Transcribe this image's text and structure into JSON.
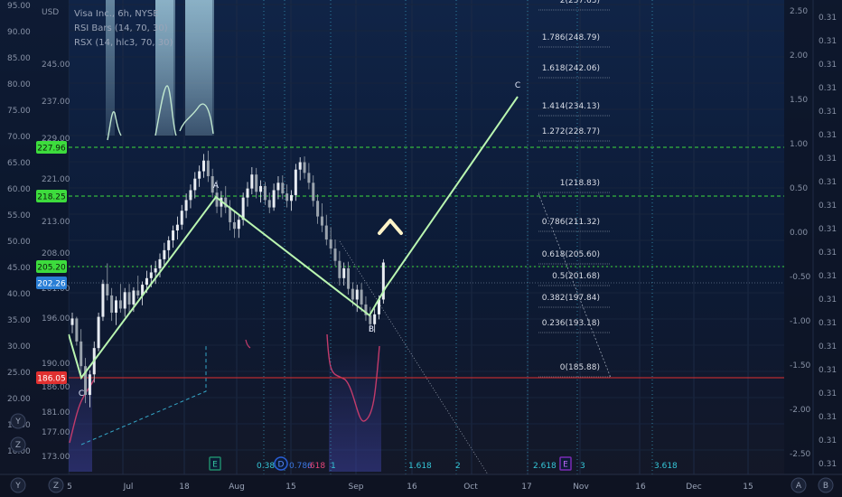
{
  "legend": {
    "symbol_line": "Visa Inc., 6h, NYSE",
    "indicator_1": "RSI Bars (14, 70, 30)",
    "indicator_2": "RSX (14, hlc3, 70, 30)"
  },
  "axis_badges": {
    "currency": "USD",
    "left_buttons": [
      "Y",
      "Z"
    ],
    "right_buttons": [
      "A",
      "B"
    ]
  },
  "colors": {
    "background_top": "#0e1a33",
    "background_bottom": "#121a2a",
    "wave": "#b9f5b0",
    "level_green": "#3ddc3d",
    "level_red": "#e03030",
    "price_blue": "#2a7fd6",
    "rsx": "#c23b6b",
    "rsi_fill": "#9ecbe0",
    "fib_text": "#d9dde6",
    "cyan": "#35c7d8"
  },
  "chart_data": {
    "type": "candlestick",
    "title": "Visa Inc., 6h, NYSE",
    "x_tick_labels": [
      "5",
      "Jul",
      "18",
      "Aug",
      "15",
      "Sep",
      "16",
      "Oct",
      "17",
      "Nov",
      "16",
      "Dec",
      "15"
    ],
    "price_axis_inner": {
      "ticks": [
        "173.00",
        "177.00",
        "181.00",
        "186.00",
        "190.00",
        "196.00",
        "201.00",
        "208.00",
        "213.00",
        "221.00",
        "245.00",
        "237.00",
        "229.00"
      ]
    },
    "left_axis": {
      "ticks": [
        "95.00",
        "90.00",
        "85.00",
        "80.00",
        "75.00",
        "70.00",
        "65.00",
        "60.00",
        "55.00",
        "50.00",
        "45.00",
        "40.00",
        "35.00",
        "30.00",
        "25.00",
        "20.00",
        "15.00",
        "10.00"
      ],
      "badges": [
        {
          "label": "227.96",
          "color": "#3ddc3d"
        },
        {
          "label": "218.25",
          "color": "#3ddc3d"
        },
        {
          "label": "205.20",
          "color": "#3ddc3d"
        },
        {
          "label": "202.26",
          "color": "#2a7fd6"
        },
        {
          "label": "186.05",
          "color": "#e03030"
        }
      ]
    },
    "right_axis": {
      "ticks": [
        "2.50",
        "2.00",
        "1.50",
        "1.00",
        "0.50",
        "0.00",
        "-0.50",
        "-1.00",
        "-1.50",
        "-2.00",
        "-2.50"
      ]
    },
    "far_right_axis": {
      "ticks": [
        "0.31",
        "0.31",
        "0.31",
        "0.31",
        "0.31",
        "0.31",
        "0.31",
        "0.31",
        "0.31",
        "0.31",
        "0.31",
        "0.31",
        "0.31",
        "0.31",
        "0.31",
        "0.31",
        "0.31",
        "0.31",
        "0.31",
        "0.31"
      ]
    },
    "fib_levels": [
      {
        "label": "2(257.63)"
      },
      {
        "label": "1.786(248.79)"
      },
      {
        "label": "1.618(242.06)"
      },
      {
        "label": "1.414(234.13)"
      },
      {
        "label": "1.272(228.77)"
      },
      {
        "label": "1(218.83)"
      },
      {
        "label": "0.786(211.32)"
      },
      {
        "label": "0.618(205.60)"
      },
      {
        "label": "0.5(201.68)"
      },
      {
        "label": "0.382(197.84)"
      },
      {
        "label": "0.236(193.18)"
      },
      {
        "label": "0(185.88)"
      }
    ],
    "wave_labels": [
      "A",
      "B",
      "C",
      "C"
    ],
    "time_fib_labels": [
      "0.382",
      "0.786",
      "1",
      "1.618",
      "2",
      "2.618",
      "3",
      "3.618"
    ],
    "event_markers": [
      {
        "glyph": "E",
        "kind": "earnings"
      },
      {
        "glyph": "D",
        "kind": "dividend"
      },
      {
        "glyph": "E",
        "kind": "earnings"
      }
    ],
    "partial_label": ".618",
    "candles_ohlc": [
      [
        196,
        197.5,
        195,
        196.8
      ],
      [
        196.8,
        197,
        193.5,
        194
      ],
      [
        194,
        195.5,
        190,
        191
      ],
      [
        191,
        192,
        186.5,
        187.5
      ],
      [
        187.5,
        190.5,
        186,
        190
      ],
      [
        190,
        194,
        189,
        193.2
      ],
      [
        193.2,
        197.5,
        192.8,
        197
      ],
      [
        197,
        201.5,
        196.5,
        201
      ],
      [
        201,
        203.5,
        199,
        199.6
      ],
      [
        199.6,
        200.5,
        196.5,
        197.5
      ],
      [
        197.5,
        199.5,
        196,
        199
      ],
      [
        199,
        201,
        197.5,
        198
      ],
      [
        198,
        200.5,
        197,
        200
      ],
      [
        200,
        201,
        197.5,
        198.5
      ],
      [
        198.5,
        200.6,
        197.6,
        200.2
      ],
      [
        200.2,
        202,
        199.2,
        199.6
      ],
      [
        199.6,
        201.3,
        198.4,
        200.9
      ],
      [
        200.9,
        202.6,
        199.9,
        201.7
      ],
      [
        201.7,
        203.3,
        200.6,
        202.4
      ],
      [
        202.4,
        203.8,
        201,
        202.9
      ],
      [
        202.9,
        204.7,
        201.8,
        204
      ],
      [
        204,
        206,
        203,
        205.1
      ],
      [
        205.1,
        206.8,
        204,
        206.3
      ],
      [
        206.3,
        208.1,
        205.4,
        207.5
      ],
      [
        207.5,
        209.2,
        206.4,
        208.2
      ],
      [
        208.2,
        210.6,
        207.6,
        209.9
      ],
      [
        209.9,
        212,
        209,
        211.2
      ],
      [
        211.2,
        213.1,
        210.2,
        212.4
      ],
      [
        212.4,
        214.6,
        211.4,
        213.8
      ],
      [
        213.8,
        215.4,
        212.8,
        214.7
      ],
      [
        214.7,
        216.8,
        213.9,
        216
      ],
      [
        216,
        217.2,
        213.4,
        214.1
      ],
      [
        214.1,
        215,
        211.5,
        212.1
      ],
      [
        212.1,
        213.6,
        209.6,
        210.4
      ],
      [
        210.4,
        212.3,
        209.1,
        211.5
      ],
      [
        211.5,
        212.9,
        209.6,
        210.3
      ],
      [
        210.3,
        211.2,
        207.5,
        208.5
      ],
      [
        208.5,
        209.8,
        206.6,
        207.7
      ],
      [
        207.7,
        209.4,
        206.6,
        208.8
      ],
      [
        208.8,
        212.1,
        208.1,
        211.5
      ],
      [
        211.5,
        213.4,
        210.4,
        212.6
      ],
      [
        212.6,
        215.2,
        211.9,
        214.3
      ],
      [
        214.3,
        215.1,
        211.4,
        212.2
      ],
      [
        212.2,
        213.6,
        210.9,
        212.9
      ],
      [
        212.9,
        213.4,
        210.6,
        211.2
      ],
      [
        211.2,
        212.1,
        209.6,
        210.3
      ],
      [
        210.3,
        213.2,
        209.9,
        212.4
      ],
      [
        212.4,
        214.1,
        211.3,
        213.3
      ],
      [
        213.3,
        214.2,
        211.3,
        212
      ],
      [
        212,
        213.1,
        210.3,
        211.1
      ],
      [
        211.1,
        212.4,
        209.9,
        211.8
      ],
      [
        211.8,
        215.6,
        211.1,
        214.9
      ],
      [
        214.9,
        216.4,
        213.6,
        215.8
      ],
      [
        215.8,
        216.5,
        213.8,
        214.5
      ],
      [
        214.5,
        215.7,
        212.5,
        213.3
      ],
      [
        213.3,
        214.2,
        210.4,
        211.1
      ],
      [
        211.1,
        211.9,
        208.3,
        209.2
      ],
      [
        209.2,
        210.8,
        207.3,
        208.1
      ],
      [
        208.1,
        209.4,
        205.7,
        206.4
      ],
      [
        206.4,
        207.9,
        204.6,
        205.3
      ],
      [
        205.3,
        206.4,
        203.2,
        203.8
      ],
      [
        203.8,
        205,
        200.8,
        201.7
      ],
      [
        201.7,
        203.6,
        200.8,
        202.9
      ],
      [
        202.9,
        203.7,
        199.7,
        200.4
      ],
      [
        200.4,
        201.2,
        198.3,
        199.1
      ],
      [
        199.1,
        200.9,
        197.6,
        200.3
      ],
      [
        200.3,
        201.1,
        197.6,
        198.5
      ],
      [
        198.5,
        199.5,
        196.5,
        197.2
      ],
      [
        197.2,
        198.2,
        195.3,
        196.1
      ],
      [
        196.1,
        198,
        195.1,
        197.3
      ],
      [
        197.3,
        199.6,
        196.7,
        199.1
      ],
      [
        199.1,
        204,
        198.6,
        203.6
      ]
    ]
  }
}
